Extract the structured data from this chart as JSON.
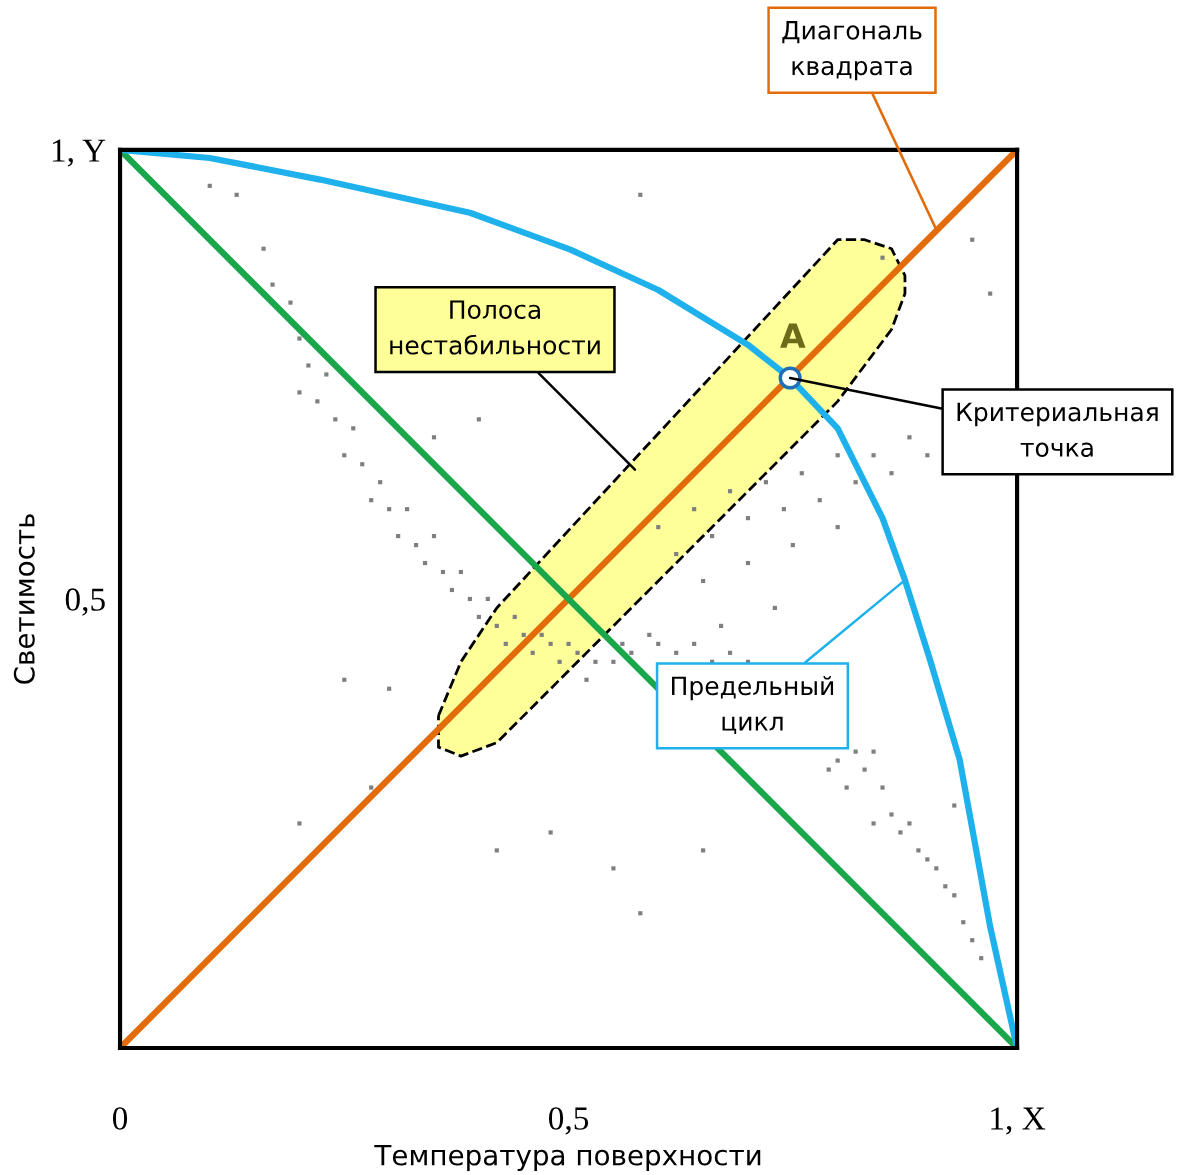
{
  "chart_data": {
    "type": "line",
    "xlabel": "Температура поверхности",
    "ylabel": "Светимость",
    "xlim": [
      0,
      1
    ],
    "ylim": [
      0,
      1
    ],
    "xticks": [
      {
        "value": 0,
        "label": "0"
      },
      {
        "value": 0.5,
        "label": "0,5"
      },
      {
        "value": 1,
        "label": "1, X"
      }
    ],
    "yticks": [
      {
        "value": 0.5,
        "label": "0,5"
      },
      {
        "value": 1,
        "label": "1, Y"
      }
    ],
    "grid": false,
    "legend": false,
    "marker": "none",
    "line_style": "solid",
    "series": [
      {
        "type": "scatter",
        "color": "#7f7f7f",
        "marker": "square",
        "x": [
          0.1,
          0.13,
          0.16,
          0.17,
          0.19,
          0.2,
          0.21,
          0.23,
          0.2,
          0.22,
          0.24,
          0.26,
          0.25,
          0.27,
          0.29,
          0.28,
          0.3,
          0.32,
          0.31,
          0.33,
          0.35,
          0.34,
          0.36,
          0.38,
          0.37,
          0.39,
          0.41,
          0.4,
          0.42,
          0.44,
          0.43,
          0.45,
          0.47,
          0.46,
          0.48,
          0.5,
          0.49,
          0.51,
          0.53,
          0.52,
          0.55,
          0.57,
          0.56,
          0.59,
          0.6,
          0.62,
          0.64,
          0.66,
          0.68,
          0.7,
          0.84,
          0.83,
          0.82,
          0.8,
          0.79,
          0.81,
          0.85,
          0.86,
          0.84,
          0.87,
          0.88,
          0.89,
          0.9,
          0.91,
          0.92,
          0.93,
          0.94,
          0.95,
          0.96,
          0.6,
          0.62,
          0.64,
          0.66,
          0.68,
          0.7,
          0.72,
          0.74,
          0.76,
          0.78,
          0.8,
          0.82,
          0.84,
          0.86,
          0.88,
          0.9,
          0.65,
          0.7,
          0.75,
          0.8,
          0.67,
          0.73,
          0.58,
          0.35,
          0.4,
          0.3,
          0.25,
          0.48,
          0.42,
          0.55,
          0.58,
          0.65,
          0.85,
          0.95,
          0.97,
          0.93,
          0.2,
          0.28
        ],
        "values": [
          0.96,
          0.95,
          0.89,
          0.85,
          0.83,
          0.79,
          0.76,
          0.75,
          0.73,
          0.72,
          0.7,
          0.69,
          0.66,
          0.65,
          0.63,
          0.61,
          0.6,
          0.6,
          0.57,
          0.56,
          0.57,
          0.54,
          0.53,
          0.53,
          0.51,
          0.5,
          0.5,
          0.48,
          0.47,
          0.48,
          0.45,
          0.46,
          0.46,
          0.44,
          0.45,
          0.45,
          0.43,
          0.44,
          0.43,
          0.41,
          0.43,
          0.44,
          0.45,
          0.46,
          0.45,
          0.44,
          0.45,
          0.43,
          0.44,
          0.43,
          0.33,
          0.31,
          0.33,
          0.32,
          0.31,
          0.29,
          0.29,
          0.26,
          0.25,
          0.24,
          0.25,
          0.22,
          0.21,
          0.2,
          0.18,
          0.17,
          0.14,
          0.12,
          0.1,
          0.58,
          0.55,
          0.6,
          0.57,
          0.62,
          0.59,
          0.63,
          0.6,
          0.64,
          0.61,
          0.66,
          0.63,
          0.66,
          0.64,
          0.68,
          0.66,
          0.52,
          0.54,
          0.56,
          0.58,
          0.47,
          0.49,
          0.95,
          0.68,
          0.7,
          0.4,
          0.41,
          0.24,
          0.22,
          0.2,
          0.15,
          0.22,
          0.88,
          0.9,
          0.84,
          0.27,
          0.25,
          0.29
        ]
      },
      {
        "color": "#e36c0a",
        "x": [
          0,
          0.355,
          0.38,
          0.42,
          0.8,
          0.83,
          0.86,
          0.875,
          1
        ],
        "values": [
          0,
          0.355,
          0.38,
          0.42,
          0.8,
          0.83,
          0.86,
          0.875,
          1
        ],
        "lower": [
          null,
          0.335,
          0.325,
          0.34,
          0.72,
          0.76,
          0.8,
          0.84,
          null
        ],
        "upper": [
          null,
          0.37,
          0.43,
          0.49,
          0.9,
          0.9,
          0.89,
          0.86,
          null
        ]
      },
      {
        "color": "#1aa64a",
        "x": [
          0,
          1
        ],
        "values": [
          1,
          0
        ]
      },
      {
        "color": "#1fb1ec",
        "x": [
          0,
          0.1,
          0.223,
          0.39,
          0.502,
          0.6,
          0.7,
          0.747,
          0.8,
          0.85,
          0.875,
          0.903,
          0.936,
          0.97,
          1
        ],
        "values": [
          1,
          0.991,
          0.967,
          0.93,
          0.889,
          0.844,
          0.783,
          0.746,
          0.69,
          0.59,
          0.521,
          0.432,
          0.321,
          0.135,
          0
        ]
      },
      {
        "type": "scatter",
        "color": "#1f6fb5",
        "marker": "circle",
        "x": [
          0.747
        ],
        "values": [
          0.746
        ]
      }
    ],
    "annotations": [
      {
        "text": "Диагональ\nквадрата",
        "x": 0.911,
        "y": 0.909
      },
      "Полоса\nнестабильности",
      {
        "text": "Критериальная\nточка",
        "x": 0.747,
        "y": 0.746
      },
      {
        "text": "Предельный\nцикл",
        "x": 0.875,
        "y": 0.521
      },
      {
        "text": "A",
        "x": 0.747,
        "y": 0.746
      }
    ]
  }
}
